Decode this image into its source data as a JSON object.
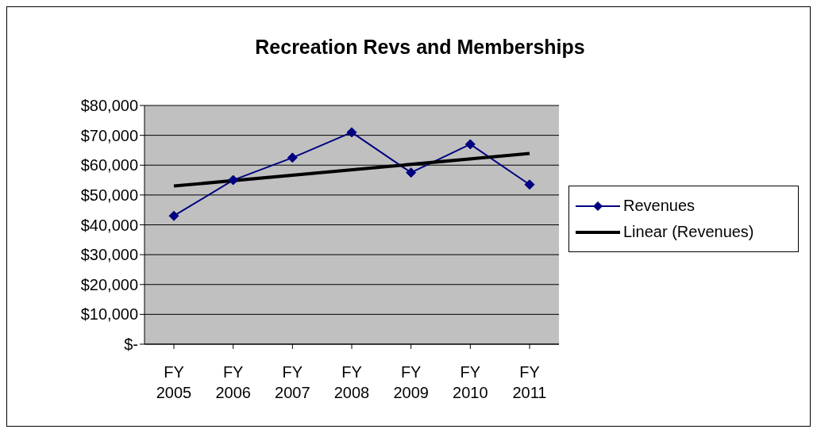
{
  "chart_data": {
    "type": "line",
    "title": "Recreation Revs and Memberships",
    "categories": [
      "FY 2005",
      "FY 2006",
      "FY 2007",
      "FY 2008",
      "FY 2009",
      "FY 2010",
      "FY 2011"
    ],
    "series": [
      {
        "name": "Revenues",
        "color": "#000080",
        "values": [
          43000,
          55000,
          62500,
          71000,
          57500,
          67000,
          53500
        ],
        "marker": "diamond"
      },
      {
        "name": "Linear (Revenues)",
        "color": "#000000",
        "values": [
          53000,
          null,
          null,
          null,
          null,
          null,
          63900
        ],
        "marker": "none"
      }
    ],
    "ylim": [
      0,
      80000
    ],
    "yticks": [
      {
        "value": 0,
        "label": "$-"
      },
      {
        "value": 10000,
        "label": "$10,000"
      },
      {
        "value": 20000,
        "label": "$20,000"
      },
      {
        "value": 30000,
        "label": "$30,000"
      },
      {
        "value": 40000,
        "label": "$40,000"
      },
      {
        "value": 50000,
        "label": "$50,000"
      },
      {
        "value": 60000,
        "label": "$60,000"
      },
      {
        "value": 70000,
        "label": "$70,000"
      },
      {
        "value": 80000,
        "label": "$80,000"
      }
    ],
    "grid": "y",
    "legend": "right"
  }
}
